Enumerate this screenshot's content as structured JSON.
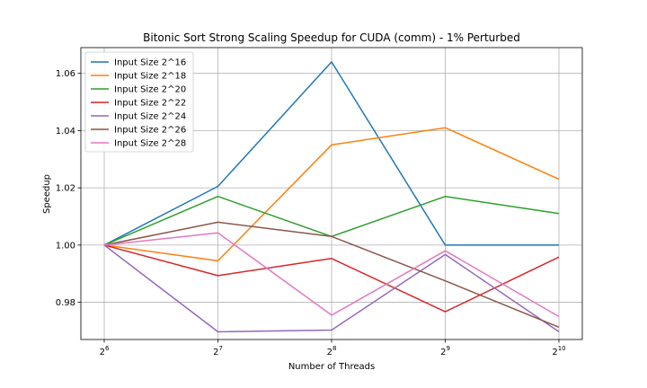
{
  "chart_data": {
    "type": "line",
    "title": "Bitonic Sort Strong Scaling Speedup for CUDA (comm) - 1% Perturbed",
    "xlabel": "Number of Threads",
    "ylabel": "Speedup",
    "x": [
      6,
      7,
      8,
      9,
      10
    ],
    "x_tick_base": "2",
    "ylim": [
      0.967,
      1.069
    ],
    "yticks": [
      0.98,
      1.0,
      1.02,
      1.04,
      1.06
    ],
    "ytick_labels": [
      "0.98",
      "1.00",
      "1.02",
      "1.04",
      "1.06"
    ],
    "grid": true,
    "legend_position": "top-left",
    "series": [
      {
        "name": "Input Size 2^16",
        "color": "#1f77b4",
        "values": [
          1.0,
          1.0205,
          1.064,
          1.0,
          1.0
        ]
      },
      {
        "name": "Input Size 2^18",
        "color": "#ff7f0e",
        "values": [
          1.0,
          0.9945,
          1.035,
          1.041,
          1.023
        ]
      },
      {
        "name": "Input Size 2^20",
        "color": "#2ca02c",
        "values": [
          1.0,
          1.017,
          1.003,
          1.017,
          1.011
        ]
      },
      {
        "name": "Input Size 2^22",
        "color": "#d62728",
        "values": [
          1.0,
          0.9893,
          0.9953,
          0.9767,
          0.9958
        ]
      },
      {
        "name": "Input Size 2^24",
        "color": "#9467bd",
        "values": [
          1.0,
          0.9697,
          0.9703,
          0.9967,
          0.9697
        ]
      },
      {
        "name": "Input Size 2^26",
        "color": "#8c564b",
        "values": [
          1.0,
          1.008,
          1.003,
          0.9875,
          0.9713
        ]
      },
      {
        "name": "Input Size 2^28",
        "color": "#e377c2",
        "values": [
          1.0,
          1.0043,
          0.9755,
          0.998,
          0.975
        ]
      }
    ]
  }
}
